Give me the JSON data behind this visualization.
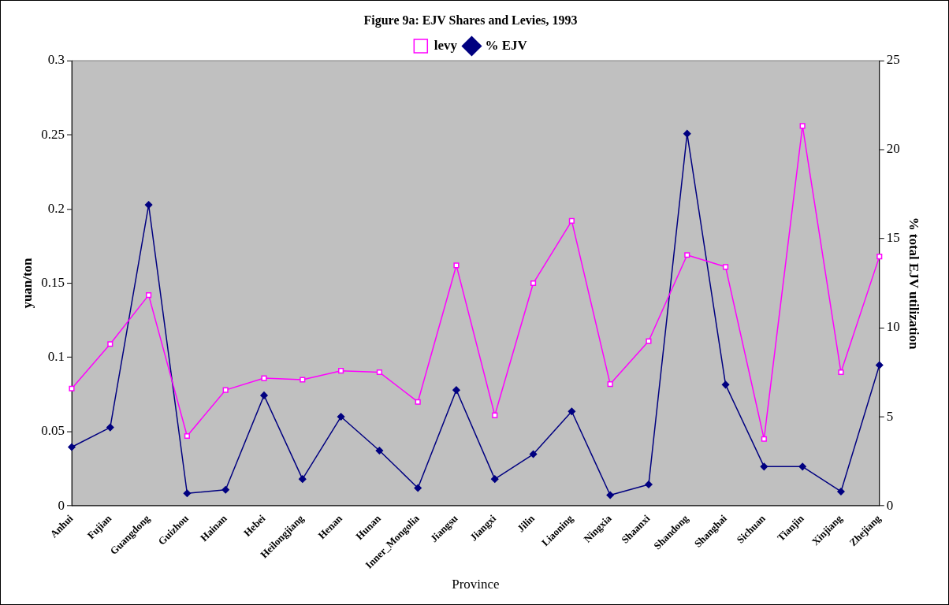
{
  "chart_data": {
    "type": "line",
    "title": "Figure 9a: EJV Shares and Levies, 1993",
    "xlabel": "Province",
    "ylabel": "yuan/ton",
    "y2label": "% total EJV utilization",
    "categories": [
      "Anhui",
      "Fujian",
      "Guangdong",
      "Guizhou",
      "Hainan",
      "Hebei",
      "Heilongjiang",
      "Henan",
      "Hunan",
      "Inner_Mongolia",
      "Jiangsu",
      "Jiangxi",
      "Jilin",
      "Liaoning",
      "Ningxia",
      "Shaanxi",
      "Shandong",
      "Shanghai",
      "Sichuan",
      "Tianjin",
      "Xinjiang",
      "Zhejiang"
    ],
    "series": [
      {
        "name": "levy",
        "color": "#ff00ff",
        "marker": "square",
        "values": [
          0.079,
          0.109,
          0.142,
          0.047,
          0.078,
          0.086,
          0.085,
          0.091,
          0.09,
          0.07,
          0.162,
          0.061,
          0.15,
          0.192,
          0.082,
          0.111,
          0.169,
          0.161,
          0.045,
          0.256,
          0.09,
          0.168
        ]
      },
      {
        "name": "% EJV",
        "color": "#000080",
        "marker": "diamond",
        "axis": "y2",
        "values": [
          3.3,
          4.4,
          16.9,
          0.7,
          0.9,
          6.2,
          1.5,
          5.0,
          3.1,
          1.0,
          6.5,
          1.5,
          2.9,
          5.3,
          0.6,
          1.2,
          20.9,
          6.8,
          2.2,
          2.2,
          0.8,
          7.9
        ]
      }
    ],
    "ylim": [
      0,
      0.3
    ],
    "yticks": [
      0,
      0.05,
      0.1,
      0.15,
      0.2,
      0.25,
      0.3
    ],
    "y2lim": [
      0,
      25
    ],
    "y2ticks": [
      0,
      5,
      10,
      15,
      20,
      25
    ],
    "grid": false,
    "legend": "top"
  }
}
